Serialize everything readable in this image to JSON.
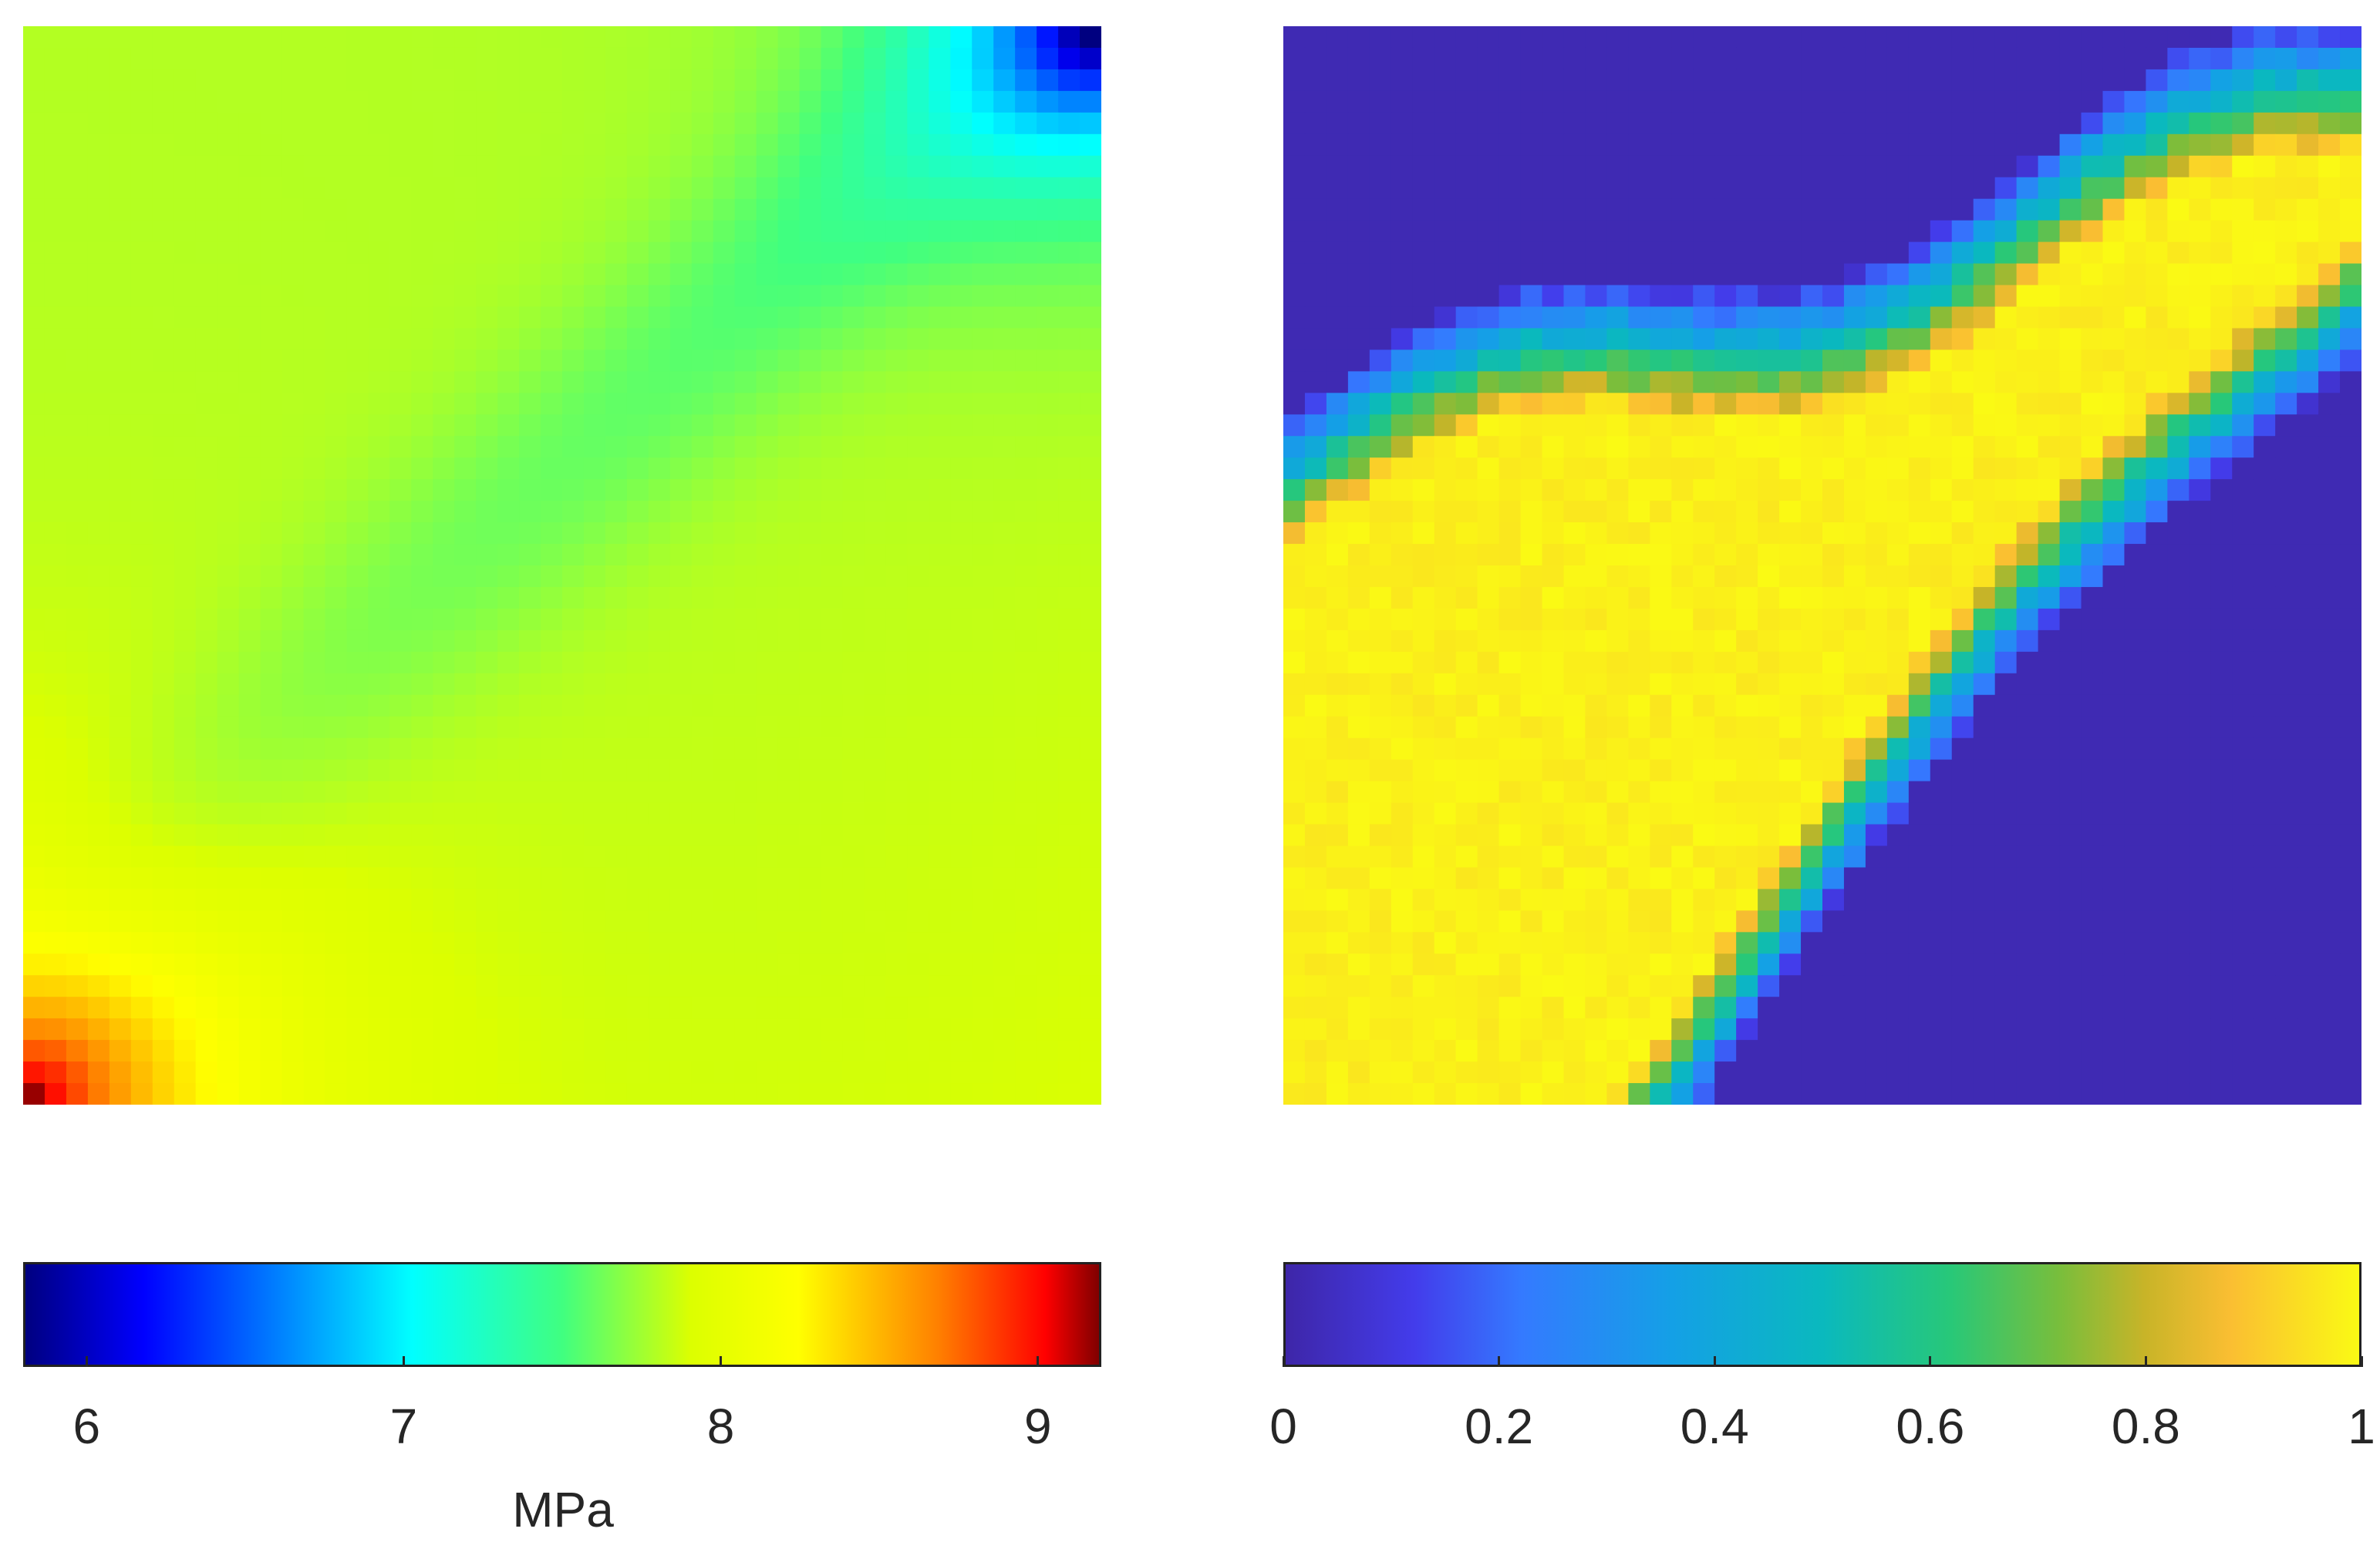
{
  "chart_data": [
    {
      "type": "heatmap",
      "title": "",
      "xlabel": "",
      "ylabel": "",
      "colormap": "jet",
      "colorbar": {
        "location": "bottom",
        "label": "MPa",
        "range": [
          5.8,
          9.2
        ],
        "ticks": [
          6,
          7,
          8,
          9
        ],
        "tick_labels": [
          "6",
          "7",
          "8",
          "9"
        ]
      },
      "grid_size": [
        50,
        50
      ],
      "field_description_values": {
        "typical_value": 7.85,
        "min_top_right_corner": 5.85,
        "max_bottom_left_corner": 9.15
      }
    },
    {
      "type": "heatmap",
      "title": "",
      "xlabel": "",
      "ylabel": "",
      "colormap": "parula",
      "colorbar": {
        "location": "bottom",
        "label": "",
        "range": [
          0,
          1
        ],
        "ticks": [
          0,
          0.2,
          0.4,
          0.6,
          0.8,
          1
        ],
        "tick_labels": [
          "0",
          "0.2",
          "0.4",
          "0.6",
          "0.8",
          "1"
        ]
      },
      "grid_size": [
        50,
        50
      ],
      "field_description_values": {
        "band_value": 1.0,
        "outside_value": 0.0
      }
    }
  ]
}
